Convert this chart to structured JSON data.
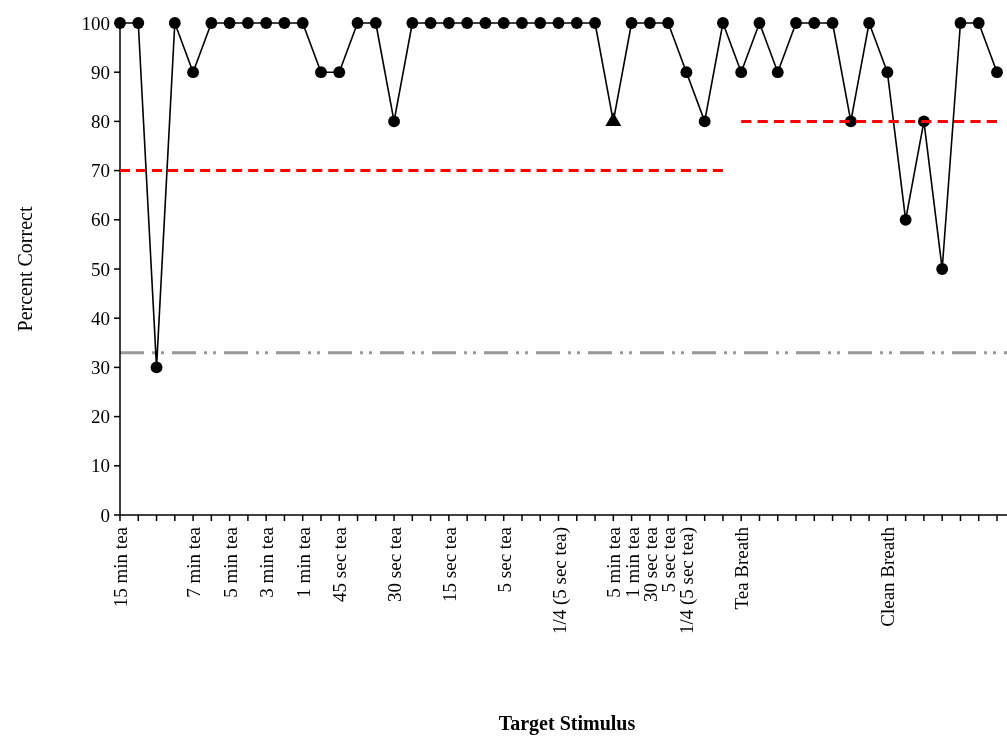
{
  "chart_data": {
    "type": "line",
    "xlabel": "Target Stimulus",
    "ylabel": "Percent Correct",
    "categories": [
      "15 min tea",
      null,
      null,
      null,
      "7 min tea",
      null,
      "5 min tea",
      null,
      "3 min tea",
      null,
      "1 min tea",
      null,
      "45 sec tea",
      null,
      null,
      "30 sec tea",
      null,
      null,
      "15 sec tea",
      null,
      null,
      "5 sec tea",
      null,
      null,
      "1/4 (5 sec tea)",
      null,
      null,
      "5 min tea",
      "1 min tea",
      "30 sec tea",
      "5 sec tea",
      "1/4 (5 sec tea)",
      null,
      null,
      "Tea Breath",
      null,
      null,
      null,
      null,
      null,
      null,
      null,
      "Clean Breath",
      null,
      null,
      null,
      null,
      null,
      null
    ],
    "ylim": [
      0,
      100
    ],
    "yticks": [
      0,
      10,
      20,
      30,
      40,
      50,
      60,
      70,
      80,
      90,
      100
    ],
    "grid": false,
    "series": [
      {
        "color": "#000000",
        "marker": "none",
        "line_style": "solid",
        "values": [
          100,
          100,
          30,
          100,
          90,
          100,
          100,
          100,
          100,
          100,
          100,
          90,
          90,
          100,
          100,
          80,
          100,
          100,
          100,
          100,
          100,
          100,
          100,
          100,
          100,
          100,
          100,
          80,
          100,
          100,
          100,
          90,
          80,
          100,
          90,
          100,
          90,
          100,
          100,
          100,
          80,
          100,
          90,
          60,
          80,
          50,
          100,
          100,
          90
        ]
      },
      {
        "type": "scatter",
        "color": "#000000",
        "marker": "circle",
        "values": [
          100,
          100,
          30,
          100,
          90,
          100,
          100,
          100,
          100,
          100,
          100,
          90,
          90,
          100,
          100,
          80,
          100,
          100,
          100,
          100,
          100,
          100,
          100,
          100,
          100,
          100,
          100,
          null,
          100,
          100,
          100,
          90,
          80,
          100,
          90,
          100,
          90,
          100,
          100,
          100,
          80,
          100,
          90,
          60,
          80,
          50,
          100,
          100,
          90
        ]
      },
      {
        "type": "scatter",
        "color": "#000000",
        "marker": "triangle",
        "values": [
          null,
          null,
          null,
          null,
          null,
          null,
          null,
          null,
          null,
          null,
          null,
          null,
          null,
          null,
          null,
          null,
          null,
          null,
          null,
          null,
          null,
          null,
          null,
          null,
          null,
          null,
          null,
          80,
          null,
          null,
          null,
          null,
          null,
          null,
          null,
          null,
          null,
          null,
          null,
          null,
          null,
          null,
          null,
          null,
          null,
          null,
          null,
          null,
          null
        ]
      },
      {
        "color": "#ff0000",
        "marker": "none",
        "line_style": "dashed",
        "values": [
          70,
          70,
          70,
          70,
          70,
          70,
          70,
          70,
          70,
          70,
          70,
          70,
          70,
          70,
          70,
          70,
          70,
          70,
          70,
          70,
          70,
          70,
          70,
          70,
          70,
          70,
          70,
          70,
          70,
          70,
          70,
          70,
          70,
          70,
          null,
          null,
          null,
          null,
          null,
          null,
          null,
          null,
          null,
          null,
          null,
          null,
          null,
          null,
          null
        ]
      },
      {
        "color": "#ff0000",
        "marker": "none",
        "line_style": "dashed",
        "values": [
          null,
          null,
          null,
          null,
          null,
          null,
          null,
          null,
          null,
          null,
          null,
          null,
          null,
          null,
          null,
          null,
          null,
          null,
          null,
          null,
          null,
          null,
          null,
          null,
          null,
          null,
          null,
          null,
          null,
          null,
          null,
          null,
          null,
          null,
          80,
          80,
          80,
          80,
          80,
          80,
          80,
          80,
          80,
          80,
          80,
          80,
          80,
          80,
          80
        ]
      }
    ],
    "ref_lines": [
      {
        "axis": "y",
        "value": 33,
        "color": "#999999",
        "line_style": "dashdot"
      }
    ]
  }
}
